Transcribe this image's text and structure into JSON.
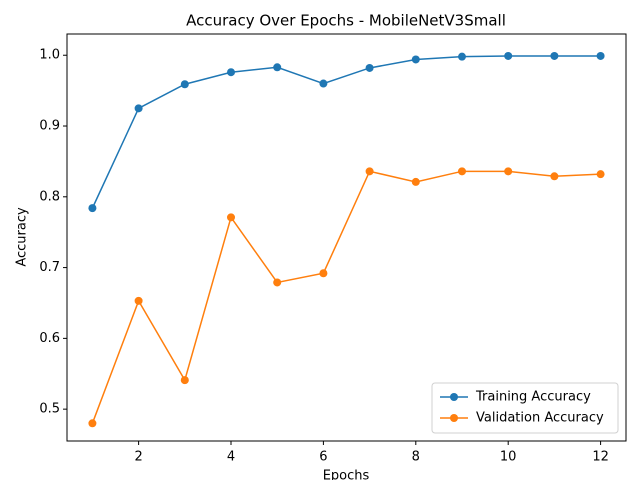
{
  "chart_data": {
    "type": "line",
    "title": "Accuracy Over Epochs - MobileNetV3Small",
    "x_label": "Epochs",
    "y_label": "Accuracy",
    "x": [
      1,
      2,
      3,
      4,
      5,
      6,
      7,
      8,
      9,
      10,
      11,
      12
    ],
    "series": [
      {
        "name": "Training Accuracy",
        "color": "#1f77b4",
        "values": [
          0.784,
          0.925,
          0.959,
          0.976,
          0.983,
          0.96,
          0.982,
          0.994,
          0.998,
          0.999,
          0.999,
          0.999
        ]
      },
      {
        "name": "Validation Accuracy",
        "color": "#ff7f0e",
        "values": [
          0.48,
          0.653,
          0.541,
          0.771,
          0.679,
          0.692,
          0.836,
          0.821,
          0.836,
          0.836,
          0.829,
          0.832
        ]
      }
    ],
    "xlim": [
      0.45,
      12.55
    ],
    "xticks": [
      2,
      4,
      6,
      8,
      10,
      12
    ],
    "ylim": [
      0.455,
      1.03
    ],
    "yticks": [
      {
        "value": 0.5,
        "label": "0.5"
      },
      {
        "value": 0.6,
        "label": "0.6"
      },
      {
        "value": 0.7,
        "label": "0.7"
      },
      {
        "value": 0.8,
        "label": "0.8"
      },
      {
        "value": 0.9,
        "label": "0.9"
      },
      {
        "value": 1.0,
        "label": "1.0"
      }
    ],
    "legend": "lower right",
    "grid": false
  }
}
